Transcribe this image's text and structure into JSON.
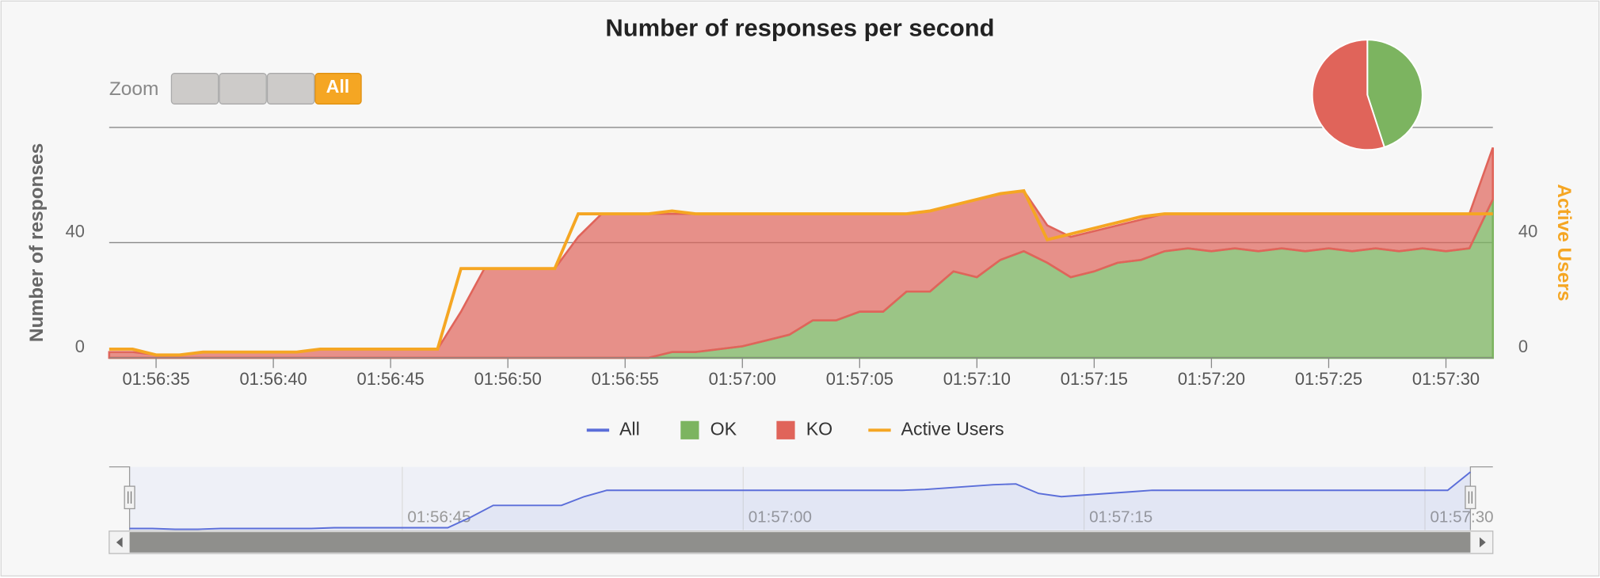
{
  "chart_data": [
    {
      "type": "area",
      "title": "Number of responses per second",
      "y_label": "Number of responses",
      "y2_label": "Active Users",
      "zoom_label": "Zoom",
      "zoom_selected": "All",
      "x": [
        "01:56:33",
        "01:56:34",
        "01:56:35",
        "01:56:36",
        "01:56:37",
        "01:56:38",
        "01:56:39",
        "01:56:40",
        "01:56:41",
        "01:56:42",
        "01:56:43",
        "01:56:44",
        "01:56:45",
        "01:56:46",
        "01:56:47",
        "01:56:48",
        "01:56:49",
        "01:56:50",
        "01:56:51",
        "01:56:52",
        "01:56:53",
        "01:56:54",
        "01:56:55",
        "01:56:56",
        "01:56:57",
        "01:56:58",
        "01:56:59",
        "01:57:00",
        "01:57:01",
        "01:57:02",
        "01:57:03",
        "01:57:04",
        "01:57:05",
        "01:57:06",
        "01:57:07",
        "01:57:08",
        "01:57:09",
        "01:57:10",
        "01:57:11",
        "01:57:12",
        "01:57:13",
        "01:57:14",
        "01:57:15",
        "01:57:16",
        "01:57:17",
        "01:57:18",
        "01:57:19",
        "01:57:20",
        "01:57:21",
        "01:57:22",
        "01:57:23",
        "01:57:24",
        "01:57:25",
        "01:57:26",
        "01:57:27",
        "01:57:28",
        "01:57:29",
        "01:57:30",
        "01:57:31",
        "01:57:32"
      ],
      "xticks": [
        "01:56:35",
        "01:56:40",
        "01:56:45",
        "01:56:50",
        "01:56:55",
        "01:57:00",
        "01:57:05",
        "01:57:10",
        "01:57:15",
        "01:57:20",
        "01:57:25",
        "01:57:30"
      ],
      "ylim": [
        0,
        80
      ],
      "yticks": [
        0,
        40
      ],
      "y2lim": [
        0,
        80
      ],
      "y2ticks": [
        0,
        40
      ],
      "grid": true,
      "series": [
        {
          "name": "All",
          "color": "#5b6ed9",
          "values": [
            2,
            2,
            1,
            1,
            2,
            2,
            2,
            2,
            2,
            3,
            3,
            3,
            3,
            3,
            3,
            16,
            31,
            31,
            31,
            31,
            42,
            50,
            50,
            50,
            50,
            50,
            50,
            50,
            50,
            50,
            50,
            50,
            50,
            50,
            50,
            51,
            53,
            55,
            57,
            58,
            46,
            42,
            44,
            46,
            48,
            50,
            50,
            50,
            50,
            50,
            50,
            50,
            50,
            50,
            50,
            50,
            50,
            50,
            50,
            73
          ]
        },
        {
          "name": "OK",
          "color": "#7cb460",
          "values": [
            0,
            0,
            0,
            0,
            0,
            0,
            0,
            0,
            0,
            0,
            0,
            0,
            0,
            0,
            0,
            0,
            0,
            0,
            0,
            0,
            0,
            0,
            0,
            0,
            2,
            2,
            3,
            4,
            6,
            8,
            13,
            13,
            16,
            16,
            23,
            23,
            30,
            28,
            34,
            37,
            33,
            28,
            30,
            33,
            34,
            37,
            38,
            37,
            38,
            37,
            38,
            37,
            38,
            37,
            38,
            37,
            38,
            37,
            38,
            55
          ]
        },
        {
          "name": "KO",
          "color": "#e0645a",
          "values": [
            2,
            2,
            1,
            1,
            2,
            2,
            2,
            2,
            2,
            3,
            3,
            3,
            3,
            3,
            3,
            16,
            31,
            31,
            31,
            31,
            42,
            50,
            50,
            50,
            48,
            48,
            47,
            46,
            44,
            42,
            37,
            37,
            34,
            34,
            27,
            28,
            23,
            27,
            23,
            21,
            13,
            14,
            14,
            13,
            14,
            13,
            12,
            13,
            12,
            13,
            12,
            13,
            12,
            13,
            12,
            13,
            12,
            13,
            12,
            18
          ]
        },
        {
          "name": "Active Users",
          "color": "#f5a623",
          "axis": "y2",
          "values": [
            3,
            3,
            1,
            1,
            2,
            2,
            2,
            2,
            2,
            3,
            3,
            3,
            3,
            3,
            3,
            31,
            31,
            31,
            31,
            31,
            50,
            50,
            50,
            50,
            51,
            50,
            50,
            50,
            50,
            50,
            50,
            50,
            50,
            50,
            50,
            51,
            53,
            55,
            57,
            58,
            41,
            43,
            45,
            47,
            49,
            50,
            50,
            50,
            50,
            50,
            50,
            50,
            50,
            50,
            50,
            50,
            50,
            50,
            50,
            50
          ]
        }
      ],
      "navigator_xticks": [
        "01:56:45",
        "01:57:00",
        "01:57:15",
        "01:57:30"
      ]
    },
    {
      "type": "pie",
      "values": [
        45,
        55
      ],
      "colors": [
        "#7cb460",
        "#e0645a"
      ]
    }
  ]
}
